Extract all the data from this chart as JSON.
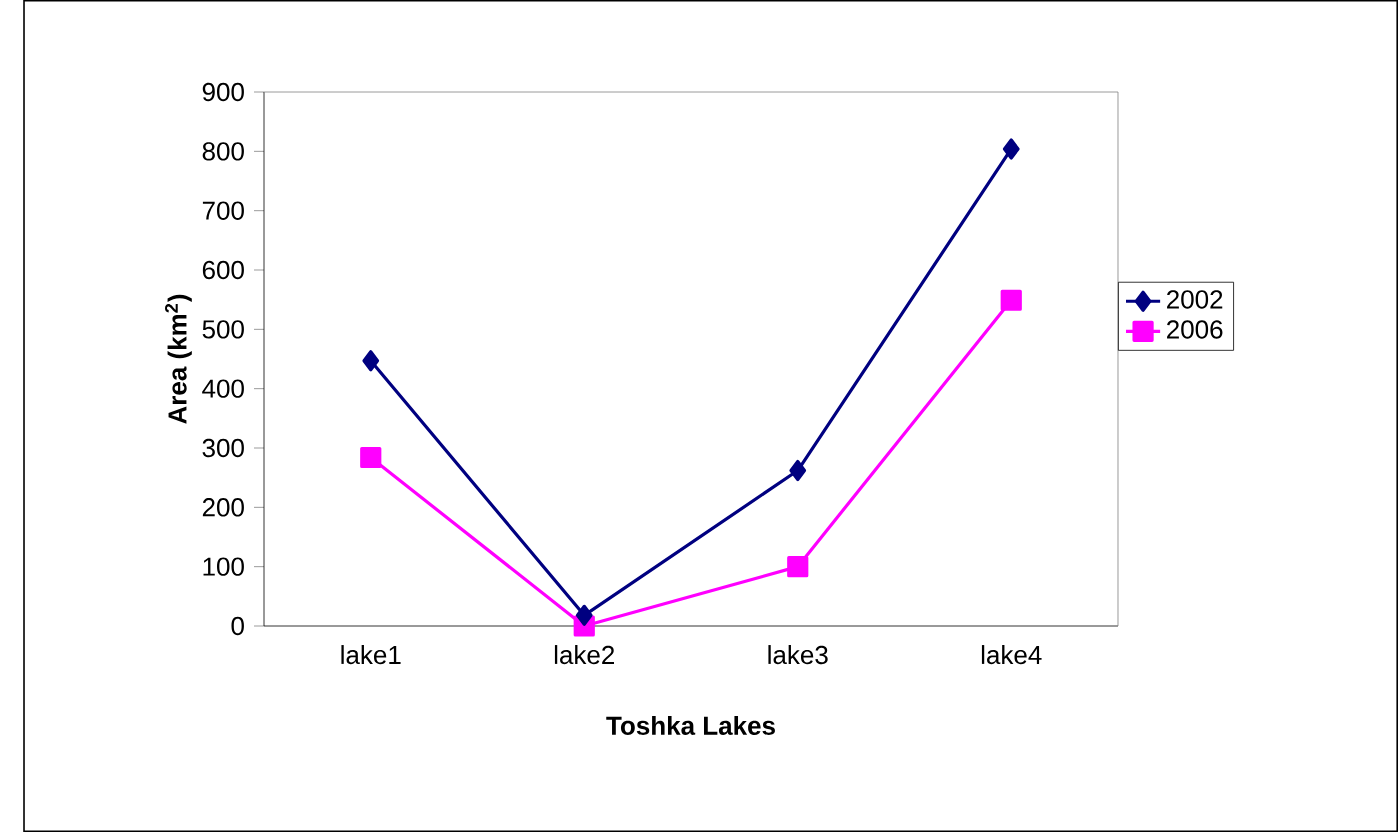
{
  "chart_data": {
    "type": "line",
    "xlabel": "Toshka Lakes",
    "ylabel": "Area (km$^{2}$)",
    "categories": [
      "lake1",
      "lake2",
      "lake3",
      "lake4"
    ],
    "series": [
      {
        "name": "2002",
        "color": "#000080",
        "marker": "diamond",
        "values": [
          447,
          18,
          262,
          804
        ]
      },
      {
        "name": "2006",
        "color": "#ff00ff",
        "marker": "square",
        "values": [
          284,
          0,
          100,
          549
        ]
      }
    ],
    "ylim": [
      0,
      900
    ],
    "yticks": [
      0,
      100,
      200,
      300,
      400,
      500,
      600,
      700,
      800,
      900
    ],
    "legend": "right"
  }
}
